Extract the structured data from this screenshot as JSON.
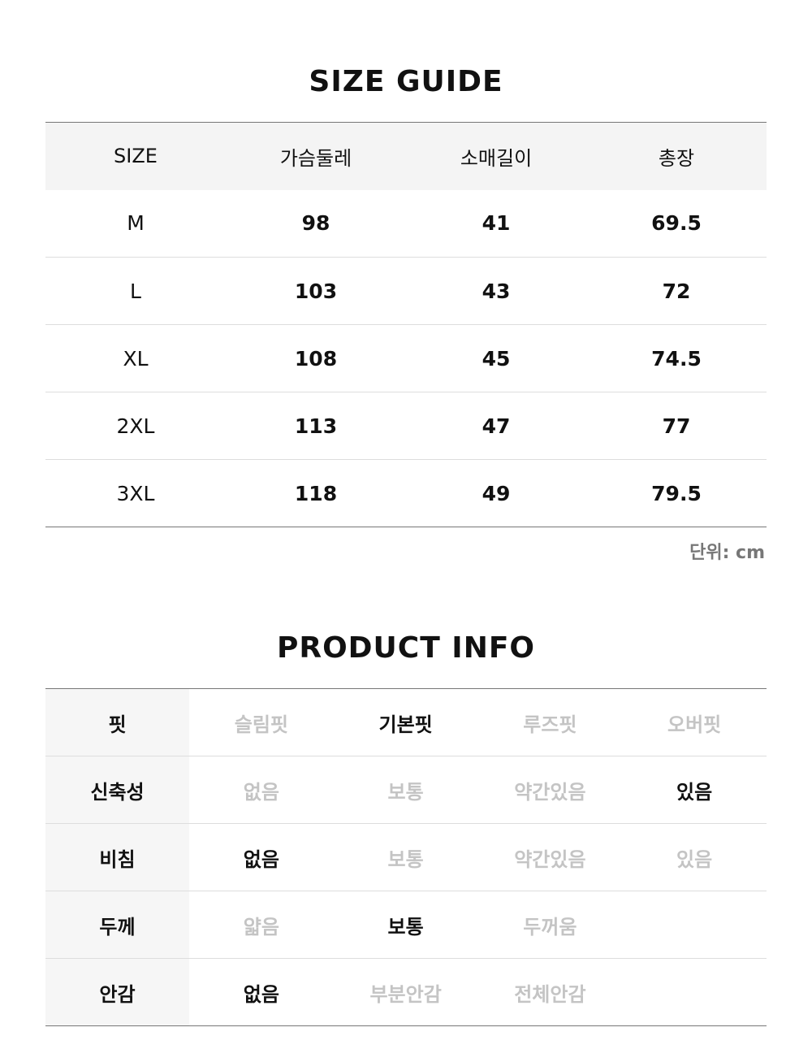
{
  "size_guide": {
    "title": "SIZE GUIDE",
    "headers": [
      "SIZE",
      "가슴둘레",
      "소매길이",
      "총장"
    ],
    "rows": [
      [
        "M",
        "98",
        "41",
        "69.5"
      ],
      [
        "L",
        "103",
        "43",
        "72"
      ],
      [
        "XL",
        "108",
        "45",
        "74.5"
      ],
      [
        "2XL",
        "113",
        "47",
        "77"
      ],
      [
        "3XL",
        "118",
        "49",
        "79.5"
      ]
    ],
    "unit": "단위: cm"
  },
  "product_info": {
    "title": "PRODUCT INFO",
    "rows": [
      {
        "label": "핏",
        "options": [
          "슬림핏",
          "기본핏",
          "루즈핏",
          "오버핏"
        ],
        "selected": "기본핏"
      },
      {
        "label": "신축성",
        "options": [
          "없음",
          "보통",
          "약간있음",
          "있음"
        ],
        "selected": "있음"
      },
      {
        "label": "비침",
        "options": [
          "없음",
          "보통",
          "약간있음",
          "있음"
        ],
        "selected": "없음"
      },
      {
        "label": "두께",
        "options": [
          "얇음",
          "보통",
          "두꺼움",
          ""
        ],
        "selected": "보통"
      },
      {
        "label": "안감",
        "options": [
          "없음",
          "부분안감",
          "전체안감",
          ""
        ],
        "selected": "없음"
      }
    ]
  },
  "colors": {
    "selected": "#111111",
    "unselected": "#c4c4c4",
    "header_bg": "#f4f4f4"
  }
}
